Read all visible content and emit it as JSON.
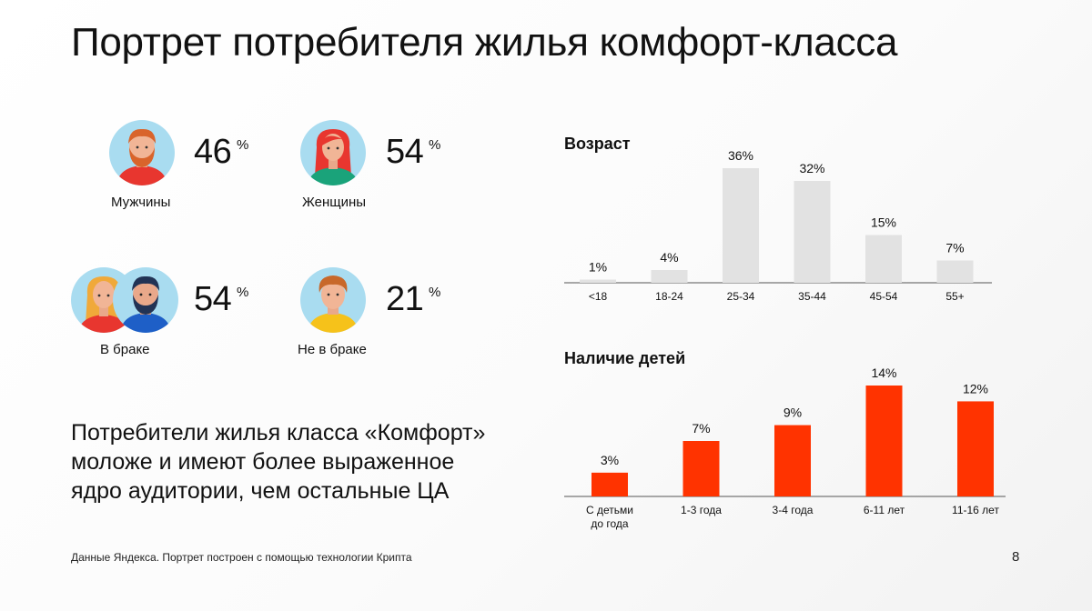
{
  "title": "Портрет потребителя жилья комфорт-класса",
  "stats": {
    "men": {
      "value": "46",
      "unit": "%",
      "label": "Мужчины"
    },
    "women": {
      "value": "54",
      "unit": "%",
      "label": "Женщины"
    },
    "married": {
      "value": "54",
      "unit": "%",
      "label": "В браке"
    },
    "single": {
      "value": "21",
      "unit": "%",
      "label": "Не в браке"
    }
  },
  "summary": "Потребители жилья класса «Комфорт»\nмоложе и имеют более выраженное\nядро аудитории, чем остальные ЦА",
  "footnote": "Данные Яндекса. Портрет построен с помощью технологии Крипта",
  "page_number": "8",
  "colors": {
    "age_bar": "#e2e2e2",
    "kids_bar": "#ff3300",
    "axis": "#555555"
  },
  "icons": [
    "man-avatar-icon",
    "woman-avatar-icon",
    "couple-avatar-icon",
    "young-man-avatar-icon"
  ],
  "chart_data": [
    {
      "type": "bar",
      "title": "Возраст",
      "categories": [
        "<18",
        "18-24",
        "25-34",
        "35-44",
        "45-54",
        "55+"
      ],
      "values": [
        1,
        4,
        36,
        32,
        15,
        7
      ],
      "value_labels": [
        "1%",
        "4%",
        "36%",
        "32%",
        "15%",
        "7%"
      ],
      "ylim": [
        0,
        36
      ]
    },
    {
      "type": "bar",
      "title": "Наличие детей",
      "categories": [
        "С детьми до года",
        "1-3 года",
        "3-4 года",
        "6-11 лет",
        "11-16 лет"
      ],
      "values": [
        3,
        7,
        9,
        14,
        12
      ],
      "value_labels": [
        "3%",
        "7%",
        "9%",
        "14%",
        "12%"
      ],
      "ylim": [
        0,
        14
      ]
    }
  ]
}
